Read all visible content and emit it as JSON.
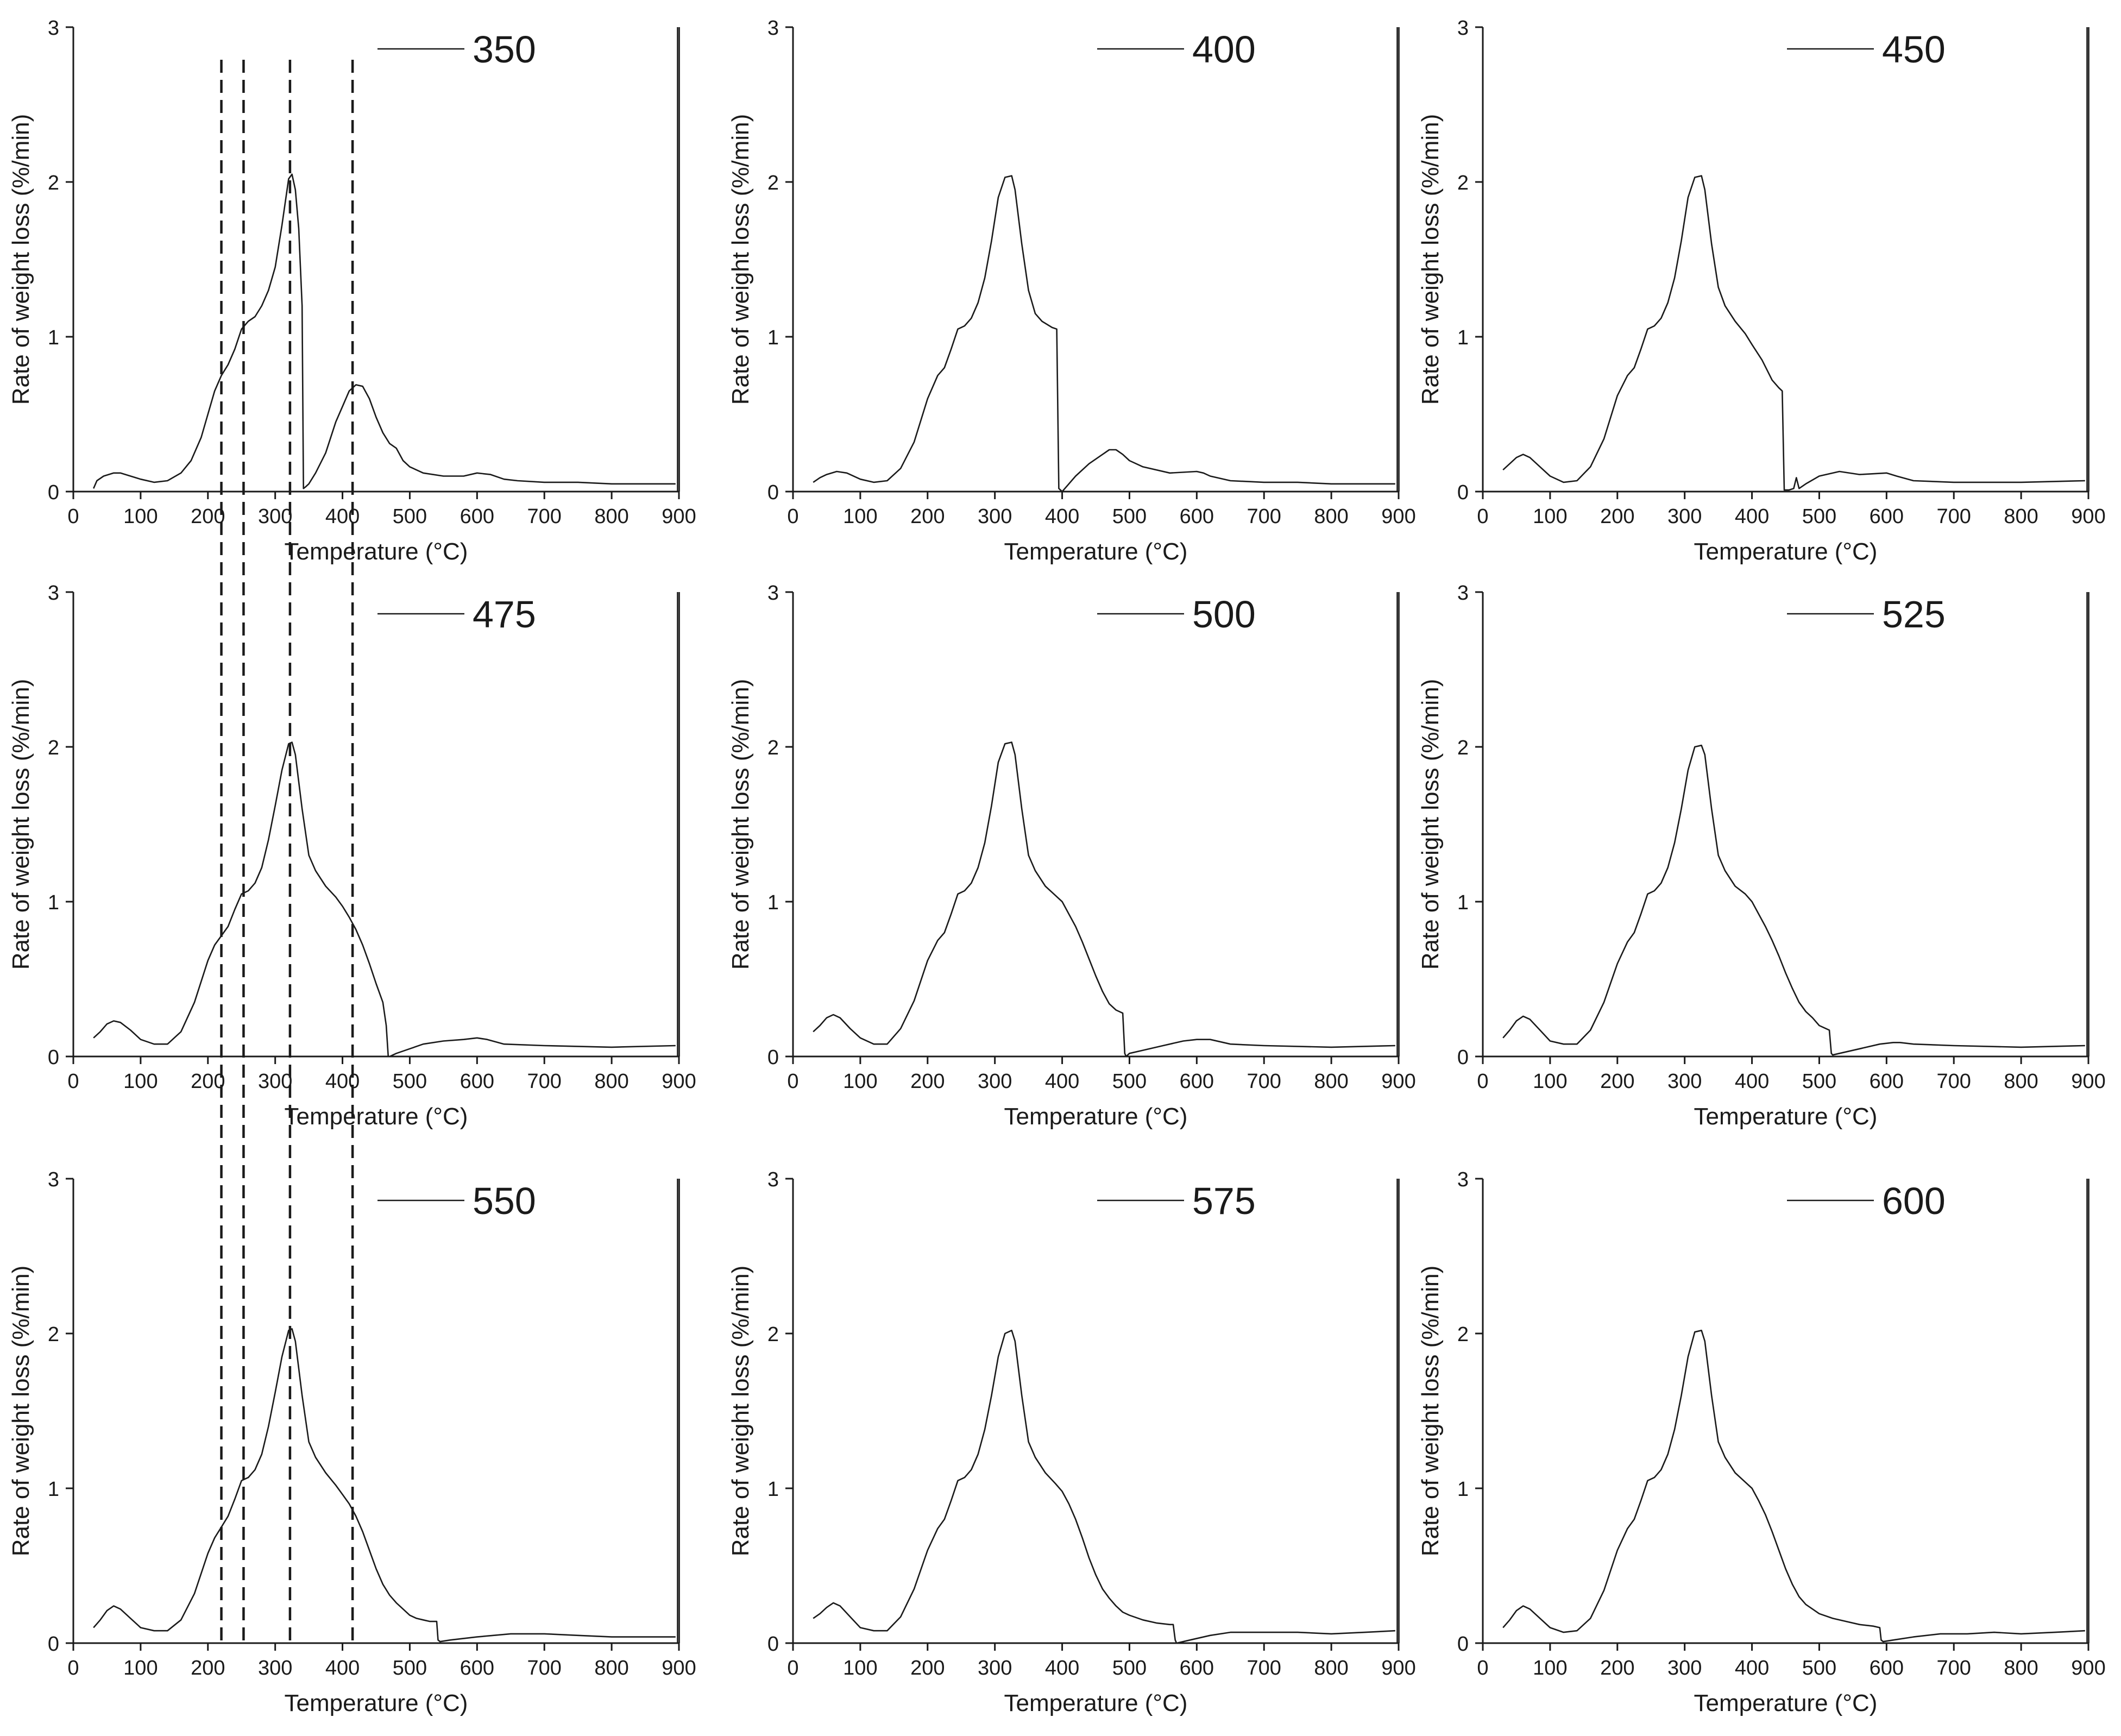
{
  "chart_data": [
    {
      "type": "line",
      "legend": "350",
      "xlabel": "Temperature (°C)",
      "ylabel": "Rate of weight loss (%/min)",
      "xlim": [
        0,
        900
      ],
      "ylim": [
        0,
        3
      ],
      "xticks": [
        "0",
        "100",
        "200",
        "300",
        "400",
        "500",
        "600",
        "700",
        "800",
        "900"
      ],
      "yticks": [
        "0",
        "1",
        "2",
        "3"
      ],
      "x": [
        30,
        35,
        45,
        60,
        70,
        85,
        100,
        120,
        140,
        160,
        175,
        190,
        200,
        210,
        220,
        230,
        240,
        250,
        260,
        270,
        280,
        290,
        300,
        310,
        320,
        325,
        330,
        335,
        340,
        342,
        345,
        350,
        360,
        375,
        390,
        400,
        410,
        420,
        430,
        440,
        450,
        460,
        470,
        480,
        490,
        500,
        520,
        550,
        580,
        600,
        620,
        640,
        660,
        700,
        750,
        800,
        850,
        880,
        895
      ],
      "y": [
        0.02,
        0.07,
        0.1,
        0.12,
        0.12,
        0.1,
        0.08,
        0.06,
        0.07,
        0.12,
        0.2,
        0.35,
        0.5,
        0.65,
        0.75,
        0.82,
        0.92,
        1.05,
        1.1,
        1.13,
        1.2,
        1.3,
        1.45,
        1.72,
        2.02,
        2.05,
        1.95,
        1.7,
        1.2,
        0.02,
        0.03,
        0.05,
        0.12,
        0.25,
        0.45,
        0.55,
        0.65,
        0.69,
        0.68,
        0.6,
        0.48,
        0.38,
        0.31,
        0.28,
        0.2,
        0.16,
        0.12,
        0.1,
        0.1,
        0.12,
        0.11,
        0.08,
        0.07,
        0.06,
        0.06,
        0.05,
        0.05,
        0.05,
        0.05
      ],
      "end_spike": {
        "x": 898,
        "y": 3.0
      },
      "dashed_lines_x": [
        220,
        253,
        322,
        415
      ]
    },
    {
      "type": "line",
      "legend": "400",
      "xlabel": "Temperature (°C)",
      "ylabel": "Rate of weight loss (%/min)",
      "xlim": [
        0,
        900
      ],
      "ylim": [
        0,
        3
      ],
      "xticks": [
        "0",
        "100",
        "200",
        "300",
        "400",
        "500",
        "600",
        "700",
        "800",
        "900"
      ],
      "yticks": [
        "0",
        "1",
        "2",
        "3"
      ],
      "x": [
        30,
        40,
        50,
        65,
        80,
        100,
        120,
        140,
        160,
        180,
        200,
        215,
        225,
        235,
        245,
        250,
        255,
        265,
        275,
        285,
        295,
        305,
        315,
        325,
        330,
        340,
        350,
        360,
        370,
        385,
        392,
        395,
        400,
        420,
        440,
        460,
        470,
        480,
        490,
        500,
        520,
        560,
        600,
        610,
        620,
        650,
        700,
        750,
        800,
        850,
        895
      ],
      "y": [
        0.06,
        0.09,
        0.11,
        0.13,
        0.12,
        0.08,
        0.06,
        0.07,
        0.15,
        0.32,
        0.6,
        0.75,
        0.8,
        0.92,
        1.05,
        1.06,
        1.07,
        1.12,
        1.22,
        1.38,
        1.62,
        1.9,
        2.03,
        2.04,
        1.95,
        1.6,
        1.3,
        1.15,
        1.1,
        1.06,
        1.05,
        0.02,
        0.0,
        0.1,
        0.18,
        0.24,
        0.27,
        0.27,
        0.24,
        0.2,
        0.16,
        0.12,
        0.13,
        0.12,
        0.1,
        0.07,
        0.06,
        0.06,
        0.05,
        0.05,
        0.05
      ],
      "end_spike": {
        "x": 898,
        "y": 3.0
      }
    },
    {
      "type": "line",
      "legend": "450",
      "xlabel": "Temperature (°C)",
      "ylabel": "Rate of weight loss (%/min)",
      "xlim": [
        0,
        900
      ],
      "ylim": [
        0,
        3
      ],
      "xticks": [
        "0",
        "100",
        "200",
        "300",
        "400",
        "500",
        "600",
        "700",
        "800",
        "900"
      ],
      "yticks": [
        "0",
        "1",
        "2",
        "3"
      ],
      "x": [
        30,
        40,
        50,
        60,
        70,
        85,
        100,
        120,
        140,
        160,
        180,
        200,
        215,
        225,
        235,
        245,
        250,
        255,
        265,
        275,
        285,
        295,
        305,
        315,
        325,
        330,
        340,
        350,
        360,
        375,
        390,
        400,
        415,
        430,
        440,
        445,
        448,
        455,
        462,
        466,
        470,
        480,
        500,
        530,
        560,
        600,
        615,
        640,
        700,
        800,
        895
      ],
      "y": [
        0.14,
        0.18,
        0.22,
        0.24,
        0.22,
        0.16,
        0.1,
        0.06,
        0.07,
        0.16,
        0.34,
        0.62,
        0.75,
        0.8,
        0.92,
        1.05,
        1.06,
        1.07,
        1.12,
        1.22,
        1.38,
        1.62,
        1.9,
        2.03,
        2.04,
        1.95,
        1.6,
        1.32,
        1.2,
        1.1,
        1.02,
        0.95,
        0.85,
        0.72,
        0.67,
        0.65,
        0.01,
        0.01,
        0.02,
        0.09,
        0.02,
        0.05,
        0.1,
        0.13,
        0.11,
        0.12,
        0.1,
        0.07,
        0.06,
        0.06,
        0.07
      ],
      "end_spike": {
        "x": 898,
        "y": 3.0
      }
    },
    {
      "type": "line",
      "legend": "475",
      "xlabel": "Temperature (°C)",
      "ylabel": "Rate of weight loss (%/min)",
      "xlim": [
        0,
        900
      ],
      "ylim": [
        0,
        3
      ],
      "xticks": [
        "0",
        "100",
        "200",
        "300",
        "400",
        "500",
        "600",
        "700",
        "800",
        "900"
      ],
      "yticks": [
        "0",
        "1",
        "2",
        "3"
      ],
      "x": [
        30,
        40,
        50,
        60,
        70,
        85,
        100,
        120,
        140,
        160,
        180,
        200,
        210,
        220,
        230,
        240,
        250,
        260,
        270,
        280,
        290,
        300,
        310,
        320,
        325,
        330,
        340,
        350,
        360,
        375,
        390,
        400,
        410,
        420,
        430,
        440,
        450,
        460,
        465,
        468,
        470,
        480,
        500,
        520,
        550,
        580,
        600,
        615,
        640,
        700,
        800,
        895
      ],
      "y": [
        0.12,
        0.16,
        0.21,
        0.23,
        0.22,
        0.17,
        0.11,
        0.08,
        0.08,
        0.16,
        0.35,
        0.62,
        0.72,
        0.78,
        0.84,
        0.95,
        1.05,
        1.07,
        1.12,
        1.22,
        1.4,
        1.62,
        1.85,
        2.02,
        2.03,
        1.95,
        1.6,
        1.3,
        1.2,
        1.1,
        1.03,
        0.97,
        0.9,
        0.82,
        0.72,
        0.6,
        0.47,
        0.35,
        0.2,
        0.0,
        0.0,
        0.02,
        0.05,
        0.08,
        0.1,
        0.11,
        0.12,
        0.11,
        0.08,
        0.07,
        0.06,
        0.07
      ],
      "end_spike": {
        "x": 898,
        "y": 3.0
      },
      "dashed_lines_x": [
        220,
        253,
        322,
        415
      ]
    },
    {
      "type": "line",
      "legend": "500",
      "xlabel": "Temperature (°C)",
      "ylabel": "Rate of weight loss (%/min)",
      "xlim": [
        0,
        900
      ],
      "ylim": [
        0,
        3
      ],
      "xticks": [
        "0",
        "100",
        "200",
        "300",
        "400",
        "500",
        "600",
        "700",
        "800",
        "900"
      ],
      "yticks": [
        "0",
        "1",
        "2",
        "3"
      ],
      "x": [
        30,
        40,
        50,
        60,
        70,
        85,
        100,
        120,
        140,
        160,
        180,
        200,
        215,
        225,
        235,
        245,
        250,
        255,
        265,
        275,
        285,
        295,
        305,
        315,
        325,
        330,
        340,
        350,
        360,
        375,
        390,
        400,
        410,
        420,
        430,
        440,
        450,
        460,
        470,
        480,
        490,
        493,
        495,
        500,
        520,
        550,
        580,
        600,
        620,
        650,
        700,
        800,
        895
      ],
      "y": [
        0.16,
        0.2,
        0.25,
        0.27,
        0.25,
        0.18,
        0.12,
        0.08,
        0.08,
        0.18,
        0.36,
        0.62,
        0.75,
        0.8,
        0.92,
        1.05,
        1.06,
        1.07,
        1.12,
        1.22,
        1.38,
        1.62,
        1.9,
        2.02,
        2.03,
        1.95,
        1.6,
        1.3,
        1.2,
        1.1,
        1.04,
        1.0,
        0.92,
        0.84,
        0.74,
        0.63,
        0.52,
        0.42,
        0.34,
        0.3,
        0.28,
        0.02,
        0.0,
        0.02,
        0.04,
        0.07,
        0.1,
        0.11,
        0.11,
        0.08,
        0.07,
        0.06,
        0.07
      ],
      "end_spike": {
        "x": 898,
        "y": 3.0
      }
    },
    {
      "type": "line",
      "legend": "525",
      "xlabel": "Temperature (°C)",
      "ylabel": "Rate of weight loss (%/min)",
      "xlim": [
        0,
        900
      ],
      "ylim": [
        0,
        3
      ],
      "xticks": [
        "0",
        "100",
        "200",
        "300",
        "400",
        "500",
        "600",
        "700",
        "800",
        "900"
      ],
      "yticks": [
        "0",
        "1",
        "2",
        "3"
      ],
      "x": [
        30,
        40,
        50,
        60,
        70,
        85,
        100,
        120,
        140,
        160,
        180,
        200,
        215,
        225,
        235,
        245,
        250,
        255,
        265,
        275,
        285,
        295,
        305,
        315,
        325,
        330,
        340,
        350,
        360,
        375,
        390,
        400,
        410,
        420,
        430,
        440,
        450,
        460,
        470,
        480,
        490,
        500,
        510,
        515,
        518,
        520,
        530,
        560,
        590,
        610,
        620,
        640,
        700,
        800,
        895
      ],
      "y": [
        0.12,
        0.17,
        0.23,
        0.26,
        0.24,
        0.17,
        0.1,
        0.08,
        0.08,
        0.17,
        0.35,
        0.6,
        0.74,
        0.8,
        0.92,
        1.05,
        1.06,
        1.07,
        1.12,
        1.22,
        1.38,
        1.6,
        1.85,
        2.0,
        2.01,
        1.95,
        1.6,
        1.3,
        1.2,
        1.1,
        1.05,
        1.0,
        0.92,
        0.84,
        0.75,
        0.65,
        0.54,
        0.44,
        0.35,
        0.29,
        0.25,
        0.2,
        0.18,
        0.17,
        0.02,
        0.01,
        0.02,
        0.05,
        0.08,
        0.09,
        0.09,
        0.08,
        0.07,
        0.06,
        0.07
      ],
      "end_spike": {
        "x": 898,
        "y": 3.0
      }
    },
    {
      "type": "line",
      "legend": "550",
      "xlabel": "Temperature (°C)",
      "ylabel": "Rate of weight loss (%/min)",
      "xlim": [
        0,
        900
      ],
      "ylim": [
        0,
        3
      ],
      "xticks": [
        "0",
        "100",
        "200",
        "300",
        "400",
        "500",
        "600",
        "700",
        "800",
        "900"
      ],
      "yticks": [
        "0",
        "1",
        "2",
        "3"
      ],
      "x": [
        30,
        40,
        50,
        60,
        70,
        85,
        100,
        120,
        140,
        160,
        180,
        200,
        210,
        220,
        230,
        240,
        250,
        260,
        270,
        280,
        290,
        300,
        310,
        320,
        325,
        330,
        340,
        350,
        360,
        375,
        390,
        400,
        410,
        420,
        430,
        440,
        450,
        460,
        470,
        480,
        490,
        500,
        510,
        520,
        530,
        540,
        542,
        545,
        560,
        600,
        650,
        700,
        750,
        800,
        850,
        895
      ],
      "y": [
        0.1,
        0.15,
        0.21,
        0.24,
        0.22,
        0.16,
        0.1,
        0.08,
        0.08,
        0.15,
        0.32,
        0.58,
        0.68,
        0.75,
        0.82,
        0.93,
        1.05,
        1.07,
        1.12,
        1.22,
        1.4,
        1.62,
        1.85,
        2.02,
        2.03,
        1.95,
        1.6,
        1.3,
        1.2,
        1.1,
        1.02,
        0.96,
        0.9,
        0.82,
        0.72,
        0.6,
        0.48,
        0.38,
        0.31,
        0.26,
        0.22,
        0.18,
        0.16,
        0.15,
        0.14,
        0.14,
        0.02,
        0.01,
        0.02,
        0.04,
        0.06,
        0.06,
        0.05,
        0.04,
        0.04,
        0.04
      ],
      "end_spike": {
        "x": 898,
        "y": 3.0
      },
      "dashed_lines_x": [
        220,
        253,
        322,
        415
      ]
    },
    {
      "type": "line",
      "legend": "575",
      "xlabel": "Temperature (°C)",
      "ylabel": "Rate of weight loss (%/min)",
      "xlim": [
        0,
        900
      ],
      "ylim": [
        0,
        3
      ],
      "xticks": [
        "0",
        "100",
        "200",
        "300",
        "400",
        "500",
        "600",
        "700",
        "800",
        "900"
      ],
      "yticks": [
        "0",
        "1",
        "2",
        "3"
      ],
      "x": [
        30,
        40,
        50,
        60,
        70,
        85,
        100,
        120,
        140,
        160,
        180,
        200,
        215,
        225,
        235,
        245,
        250,
        255,
        265,
        275,
        285,
        295,
        305,
        315,
        325,
        330,
        340,
        350,
        360,
        375,
        390,
        400,
        410,
        420,
        430,
        440,
        450,
        460,
        470,
        480,
        490,
        500,
        520,
        540,
        560,
        565,
        568,
        570,
        590,
        620,
        650,
        700,
        750,
        800,
        850,
        895
      ],
      "y": [
        0.16,
        0.19,
        0.23,
        0.26,
        0.24,
        0.17,
        0.1,
        0.08,
        0.08,
        0.17,
        0.35,
        0.6,
        0.74,
        0.8,
        0.92,
        1.05,
        1.06,
        1.07,
        1.12,
        1.22,
        1.38,
        1.6,
        1.85,
        2.0,
        2.02,
        1.95,
        1.6,
        1.3,
        1.2,
        1.1,
        1.03,
        0.98,
        0.9,
        0.8,
        0.68,
        0.55,
        0.44,
        0.35,
        0.29,
        0.24,
        0.2,
        0.18,
        0.15,
        0.13,
        0.12,
        0.12,
        0.02,
        0.0,
        0.02,
        0.05,
        0.07,
        0.07,
        0.07,
        0.06,
        0.07,
        0.08
      ],
      "end_spike": {
        "x": 898,
        "y": 3.0
      }
    },
    {
      "type": "line",
      "legend": "600",
      "xlabel": "Temperature (°C)",
      "ylabel": "Rate of weight loss (%/min)",
      "xlim": [
        0,
        900
      ],
      "ylim": [
        0,
        3
      ],
      "xticks": [
        "0",
        "100",
        "200",
        "300",
        "400",
        "500",
        "600",
        "700",
        "800",
        "900"
      ],
      "yticks": [
        "0",
        "1",
        "2",
        "3"
      ],
      "x": [
        30,
        40,
        50,
        60,
        70,
        85,
        100,
        120,
        140,
        160,
        180,
        200,
        215,
        225,
        235,
        245,
        250,
        255,
        265,
        275,
        285,
        295,
        305,
        315,
        325,
        330,
        340,
        350,
        360,
        375,
        390,
        400,
        410,
        420,
        430,
        440,
        450,
        460,
        470,
        480,
        490,
        500,
        520,
        540,
        560,
        580,
        590,
        592,
        595,
        610,
        640,
        680,
        720,
        760,
        800,
        850,
        895
      ],
      "y": [
        0.1,
        0.15,
        0.21,
        0.24,
        0.22,
        0.16,
        0.1,
        0.07,
        0.08,
        0.16,
        0.34,
        0.6,
        0.74,
        0.8,
        0.92,
        1.05,
        1.06,
        1.07,
        1.12,
        1.22,
        1.38,
        1.6,
        1.85,
        2.01,
        2.02,
        1.95,
        1.6,
        1.3,
        1.2,
        1.1,
        1.04,
        1.0,
        0.92,
        0.83,
        0.72,
        0.6,
        0.48,
        0.38,
        0.3,
        0.25,
        0.22,
        0.19,
        0.16,
        0.14,
        0.12,
        0.11,
        0.1,
        0.02,
        0.01,
        0.02,
        0.04,
        0.06,
        0.06,
        0.07,
        0.06,
        0.07,
        0.08
      ],
      "end_spike": {
        "x": 898,
        "y": 3.0
      }
    }
  ]
}
